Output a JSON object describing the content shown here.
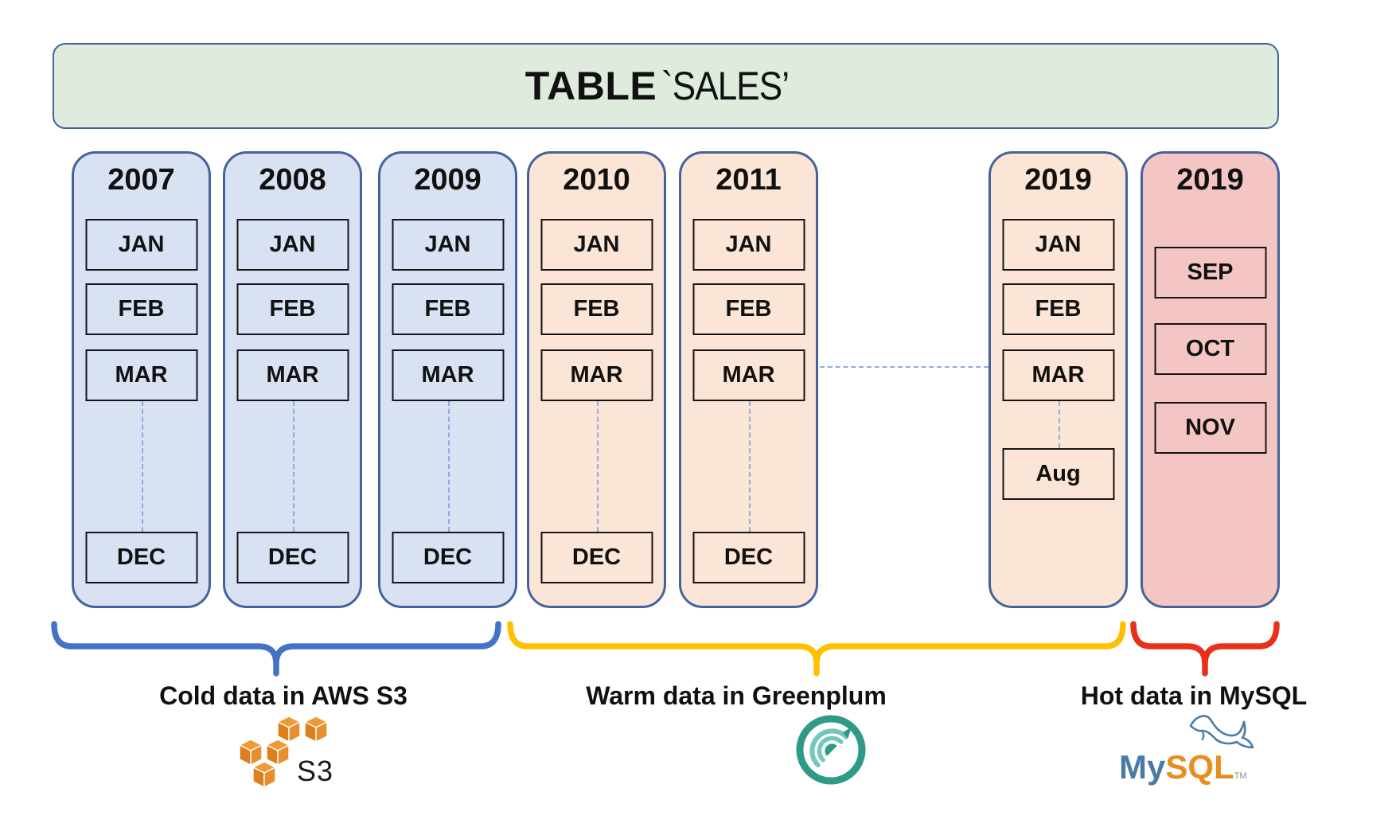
{
  "header": {
    "title_strong": "TABLE",
    "title_rest": "`SALES’"
  },
  "columns": [
    {
      "year": "2007",
      "tier": "cold",
      "months_top": [
        "JAN",
        "FEB",
        "MAR"
      ],
      "month_bottom": "DEC"
    },
    {
      "year": "2008",
      "tier": "cold",
      "months_top": [
        "JAN",
        "FEB",
        "MAR"
      ],
      "month_bottom": "DEC"
    },
    {
      "year": "2009",
      "tier": "cold",
      "months_top": [
        "JAN",
        "FEB",
        "MAR"
      ],
      "month_bottom": "DEC"
    },
    {
      "year": "2010",
      "tier": "warm",
      "months_top": [
        "JAN",
        "FEB",
        "MAR"
      ],
      "month_bottom": "DEC"
    },
    {
      "year": "2011",
      "tier": "warm",
      "months_top": [
        "JAN",
        "FEB",
        "MAR"
      ],
      "month_bottom": "DEC"
    },
    {
      "year": "2019",
      "tier": "warm",
      "months_top": [
        "JAN",
        "FEB",
        "MAR"
      ],
      "month_bottom": "Aug"
    },
    {
      "year": "2019",
      "tier": "hot",
      "months_top": [
        "SEP",
        "OCT",
        "NOV"
      ],
      "month_bottom": null
    }
  ],
  "groups": [
    {
      "id": "cold",
      "label": "Cold data in AWS S3",
      "brace_color": "#4472C4"
    },
    {
      "id": "warm",
      "label": "Warm data in Greenplum",
      "brace_color": "#FFC000"
    },
    {
      "id": "hot",
      "label": "Hot data in MySQL",
      "brace_color": "#E8301D"
    }
  ],
  "logos": {
    "s3": {
      "text": "S3",
      "orange": "#E78F2E"
    },
    "greenplum": {
      "teal_dark": "#2F9A87",
      "teal_light": "#74C7B9"
    },
    "mysql": {
      "text_blue": "My",
      "text_orange": "SQL",
      "tm": "TM"
    }
  },
  "colors": {
    "header_fill": "#DEEBDD",
    "border_blue": "#44639C",
    "cold_fill": "#D9E2F3",
    "warm_fill": "#FBE5D6",
    "hot_fill": "#F3C6C3",
    "dash": "#8FAADC",
    "mysql_blue": "#4A7BA6",
    "mysql_orange": "#E48F20"
  }
}
